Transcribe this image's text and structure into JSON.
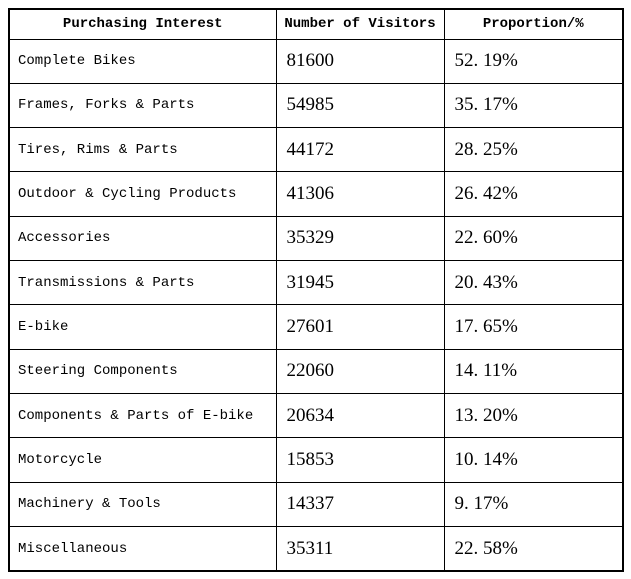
{
  "colors": {
    "border": "#000000",
    "text": "#000000",
    "background": "#ffffff"
  },
  "table": {
    "columns": [
      {
        "label": "Purchasing Interest"
      },
      {
        "label": "Number of Visitors"
      },
      {
        "label": "Proportion/%"
      }
    ],
    "rows": [
      {
        "interest": "Complete Bikes",
        "visitors": "81600",
        "proportion": "52. 19%"
      },
      {
        "interest": "Frames, Forks & Parts",
        "visitors": "54985",
        "proportion": "35. 17%"
      },
      {
        "interest": "Tires, Rims & Parts",
        "visitors": "44172",
        "proportion": "28. 25%"
      },
      {
        "interest": "Outdoor & Cycling Products",
        "visitors": "41306",
        "proportion": "26. 42%"
      },
      {
        "interest": "Accessories",
        "visitors": "35329",
        "proportion": "22. 60%"
      },
      {
        "interest": "Transmissions & Parts",
        "visitors": "31945",
        "proportion": "20. 43%"
      },
      {
        "interest": "E-bike",
        "visitors": "27601",
        "proportion": "17. 65%"
      },
      {
        "interest": "Steering Components",
        "visitors": "22060",
        "proportion": "14. 11%"
      },
      {
        "interest": "Components & Parts of E-bike",
        "visitors": "20634",
        "proportion": "13. 20%"
      },
      {
        "interest": "Motorcycle",
        "visitors": "15853",
        "proportion": "10. 14%"
      },
      {
        "interest": "Machinery & Tools",
        "visitors": "14337",
        "proportion": "9. 17%"
      },
      {
        "interest": "Miscellaneous",
        "visitors": "35311",
        "proportion": "22. 58%"
      }
    ]
  },
  "chart_data": {
    "type": "table",
    "title": "",
    "columns": [
      "Purchasing Interest",
      "Number of Visitors",
      "Proportion/%"
    ],
    "categories": [
      "Complete Bikes",
      "Frames, Forks & Parts",
      "Tires, Rims & Parts",
      "Outdoor & Cycling Products",
      "Accessories",
      "Transmissions & Parts",
      "E-bike",
      "Steering Components",
      "Components & Parts of E-bike",
      "Motorcycle",
      "Machinery & Tools",
      "Miscellaneous"
    ],
    "series": [
      {
        "name": "Number of Visitors",
        "values": [
          81600,
          54985,
          44172,
          41306,
          35329,
          31945,
          27601,
          22060,
          20634,
          15853,
          14337,
          35311
        ]
      },
      {
        "name": "Proportion/%",
        "values": [
          52.19,
          35.17,
          28.25,
          26.42,
          22.6,
          20.43,
          17.65,
          14.11,
          13.2,
          10.14,
          9.17,
          22.58
        ]
      }
    ]
  }
}
